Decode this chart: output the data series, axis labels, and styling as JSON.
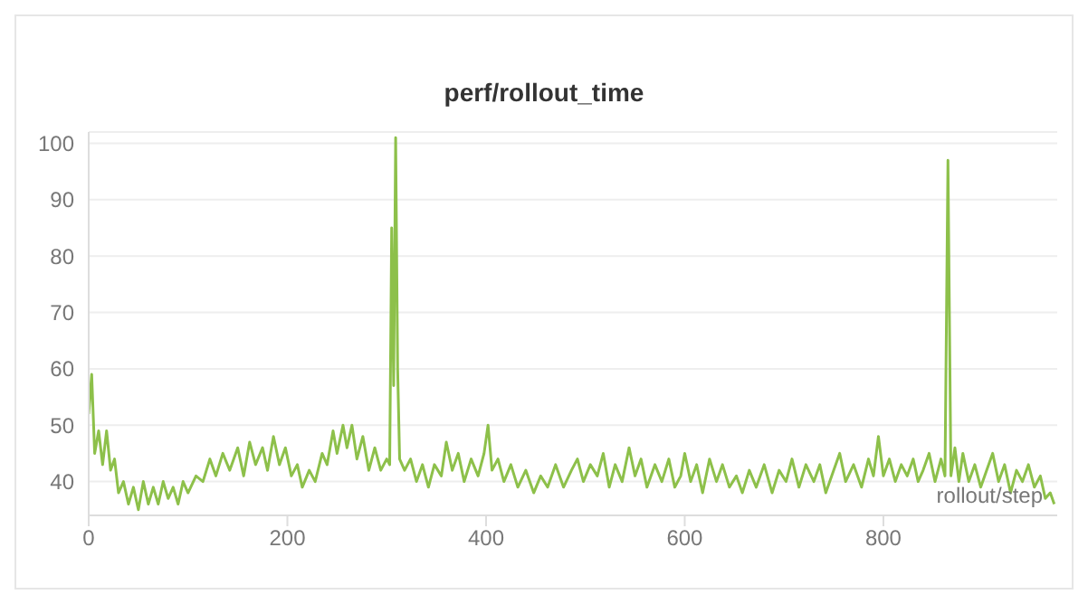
{
  "chart_data": {
    "type": "line",
    "title": "perf/rollout_time",
    "xlabel": "rollout/step",
    "xlim": [
      0,
      975
    ],
    "xticks": [
      0,
      200,
      400,
      600,
      800
    ],
    "ylim": [
      34,
      102
    ],
    "yticks": [
      40,
      50,
      60,
      70,
      80,
      90,
      100
    ],
    "grid": "y",
    "marker": "none",
    "line_style": "solid",
    "x": [
      0,
      3,
      6,
      10,
      14,
      18,
      22,
      26,
      30,
      35,
      40,
      45,
      50,
      55,
      60,
      65,
      70,
      75,
      80,
      85,
      90,
      95,
      100,
      108,
      115,
      122,
      128,
      135,
      142,
      150,
      156,
      162,
      168,
      175,
      180,
      186,
      192,
      198,
      204,
      210,
      215,
      222,
      228,
      235,
      240,
      246,
      250,
      256,
      260,
      265,
      270,
      276,
      282,
      288,
      294,
      300,
      303,
      305,
      307,
      309,
      311,
      313,
      318,
      324,
      330,
      336,
      342,
      348,
      355,
      360,
      366,
      372,
      378,
      385,
      392,
      398,
      402,
      406,
      412,
      418,
      425,
      432,
      440,
      448,
      455,
      462,
      470,
      478,
      486,
      492,
      498,
      505,
      512,
      518,
      524,
      530,
      537,
      544,
      550,
      556,
      562,
      570,
      577,
      584,
      590,
      596,
      600,
      606,
      612,
      618,
      625,
      632,
      638,
      645,
      652,
      658,
      665,
      672,
      680,
      688,
      695,
      702,
      708,
      715,
      722,
      730,
      736,
      742,
      750,
      756,
      762,
      770,
      778,
      785,
      790,
      795,
      800,
      806,
      812,
      818,
      824,
      830,
      835,
      840,
      846,
      852,
      858,
      862,
      865,
      868,
      872,
      876,
      880,
      886,
      892,
      898,
      904,
      910,
      916,
      922,
      928,
      934,
      940,
      946,
      952,
      958,
      963,
      968,
      972
    ],
    "series": [
      {
        "color": "#8dc04a",
        "values": [
          52,
          59,
          45,
          49,
          43,
          49,
          42,
          44,
          38,
          40,
          36,
          39,
          35,
          40,
          36,
          39,
          36,
          40,
          37,
          39,
          36,
          40,
          38,
          41,
          40,
          44,
          41,
          45,
          42,
          46,
          41,
          47,
          43,
          46,
          42,
          48,
          43,
          46,
          41,
          43,
          39,
          42,
          40,
          45,
          43,
          49,
          45,
          50,
          46,
          50,
          44,
          48,
          42,
          46,
          42,
          44,
          43,
          85,
          57,
          101,
          60,
          44,
          42,
          44,
          40,
          43,
          39,
          43,
          41,
          47,
          42,
          45,
          40,
          44,
          41,
          45,
          50,
          42,
          44,
          40,
          43,
          39,
          42,
          38,
          41,
          39,
          43,
          39,
          42,
          44,
          40,
          43,
          41,
          45,
          39,
          43,
          40,
          46,
          41,
          44,
          39,
          43,
          40,
          44,
          39,
          41,
          45,
          40,
          43,
          38,
          44,
          40,
          43,
          39,
          41,
          38,
          42,
          39,
          43,
          38,
          42,
          40,
          44,
          39,
          43,
          40,
          43,
          38,
          42,
          45,
          40,
          43,
          39,
          44,
          41,
          48,
          41,
          44,
          40,
          43,
          41,
          44,
          40,
          42,
          45,
          40,
          44,
          41,
          97,
          41,
          46,
          40,
          45,
          40,
          43,
          39,
          42,
          45,
          40,
          43,
          38,
          42,
          40,
          43,
          39,
          41,
          37,
          38,
          36
        ]
      }
    ]
  }
}
